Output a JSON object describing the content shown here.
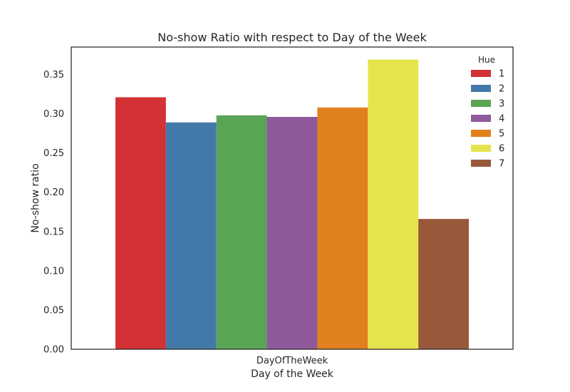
{
  "chart_data": {
    "type": "bar",
    "title": "No-show Ratio with respect to Day of the Week",
    "xlabel": "Day of the Week",
    "ylabel": "No-show ratio",
    "categories": [
      "DayOfTheWeek"
    ],
    "ylim": [
      0,
      0.385
    ],
    "yticks": [
      "0.00",
      "0.05",
      "0.10",
      "0.15",
      "0.20",
      "0.25",
      "0.30",
      "0.35"
    ],
    "legend": {
      "title": "Hue",
      "placement": "top-right"
    },
    "grid": false,
    "series": [
      {
        "name": "1",
        "color": "#d23236",
        "values": [
          0.321
        ]
      },
      {
        "name": "2",
        "color": "#4379aa",
        "values": [
          0.289
        ]
      },
      {
        "name": "3",
        "color": "#5aa456",
        "values": [
          0.298
        ]
      },
      {
        "name": "4",
        "color": "#8f5a9b",
        "values": [
          0.296
        ]
      },
      {
        "name": "5",
        "color": "#e1801e",
        "values": [
          0.308
        ]
      },
      {
        "name": "6",
        "color": "#e6e44c",
        "values": [
          0.369
        ]
      },
      {
        "name": "7",
        "color": "#98593a",
        "values": [
          0.166
        ]
      }
    ]
  }
}
